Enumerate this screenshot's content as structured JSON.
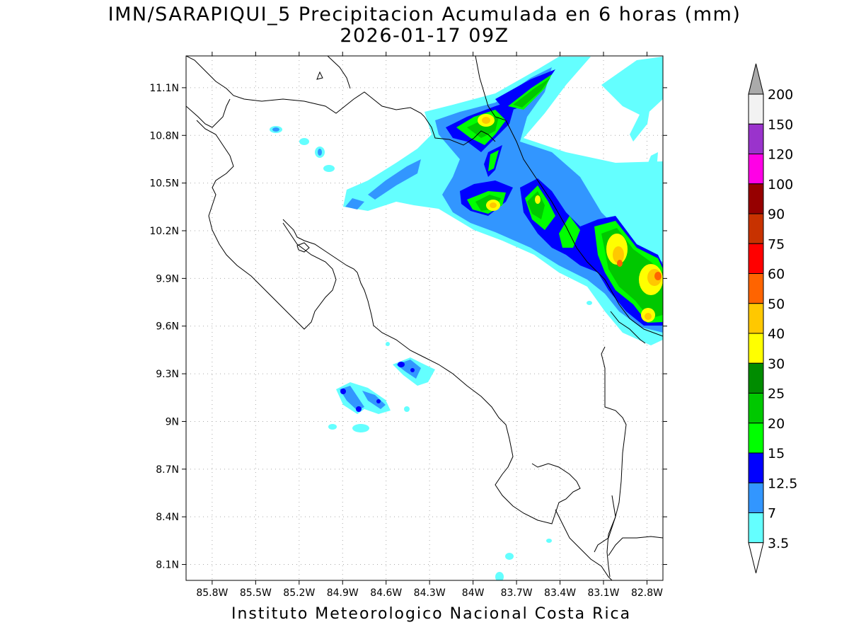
{
  "title": {
    "line1": "IMN/SARAPIQUI_5 Precipitacion Acumulada en 6 horas (mm)",
    "line2": "2026-01-17 09Z"
  },
  "footer": "Instituto Meteorologico Nacional Costa Rica",
  "map": {
    "lon_range": [
      -85.98,
      -82.69
    ],
    "lat_range": [
      8.0,
      11.3
    ],
    "lon_ticks": [
      "85.8W",
      "85.5W",
      "85.2W",
      "84.9W",
      "84.6W",
      "84.3W",
      "84W",
      "83.7W",
      "83.4W",
      "83.1W",
      "82.8W"
    ],
    "lat_ticks": [
      "11.1N",
      "10.8N",
      "10.5N",
      "10.2N",
      "9.9N",
      "9.6N",
      "9.3N",
      "9N",
      "8.7N",
      "8.4N",
      "8.1N"
    ]
  },
  "colorbar": {
    "labels": [
      "200",
      "150",
      "120",
      "100",
      "90",
      "75",
      "60",
      "50",
      "40",
      "30",
      "25",
      "20",
      "15",
      "12.5",
      "7",
      "3.5"
    ],
    "colors": [
      "#f2f2f2",
      "#9a33cc",
      "#ff00e6",
      "#960000",
      "#c83200",
      "#ff0000",
      "#ff6400",
      "#ffc800",
      "#ffff00",
      "#008c00",
      "#00c800",
      "#00ff00",
      "#0000ff",
      "#3296ff",
      "#64ffff"
    ],
    "top_arrow_color": "#aaaaaa",
    "bottom_arrow_color": "#ffffff"
  }
}
